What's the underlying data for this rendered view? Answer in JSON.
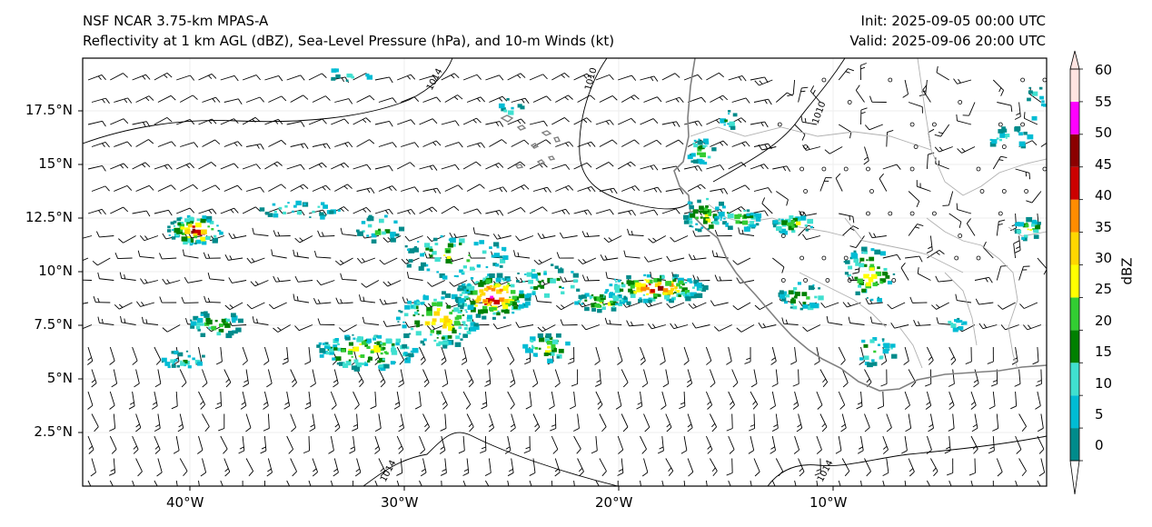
{
  "header": {
    "model": "NSF NCAR 3.75-km MPAS-A",
    "fields": "Reflectivity at 1 km AGL (dBZ), Sea-Level Pressure (hPa), and 10-m Winds (kt)",
    "init": "Init: 2025-09-05 00:00 UTC",
    "valid": "Valid: 2025-09-06 20:00 UTC"
  },
  "axes": {
    "lon_labels": [
      "40°W",
      "30°W",
      "20°W",
      "10°W"
    ],
    "lat_labels": [
      "17.5°N",
      "15°N",
      "12.5°N",
      "10°N",
      "7.5°N",
      "5°N",
      "2.5°N"
    ]
  },
  "isobars": {
    "labels": [
      "1014",
      "1010",
      "1010",
      "1014",
      "1014"
    ]
  },
  "colorbar": {
    "label": "dBZ",
    "ticks": [
      "0",
      "5",
      "10",
      "15",
      "20",
      "25",
      "30",
      "35",
      "40",
      "45",
      "50",
      "55",
      "60"
    ],
    "colors": [
      "#008b8b",
      "#00bcd4",
      "#40e0d0",
      "#008000",
      "#32cd32",
      "#ffff00",
      "#ffd700",
      "#ff8c00",
      "#cc0000",
      "#8b0000",
      "#ff00ff",
      "#ffe4e1"
    ]
  }
}
